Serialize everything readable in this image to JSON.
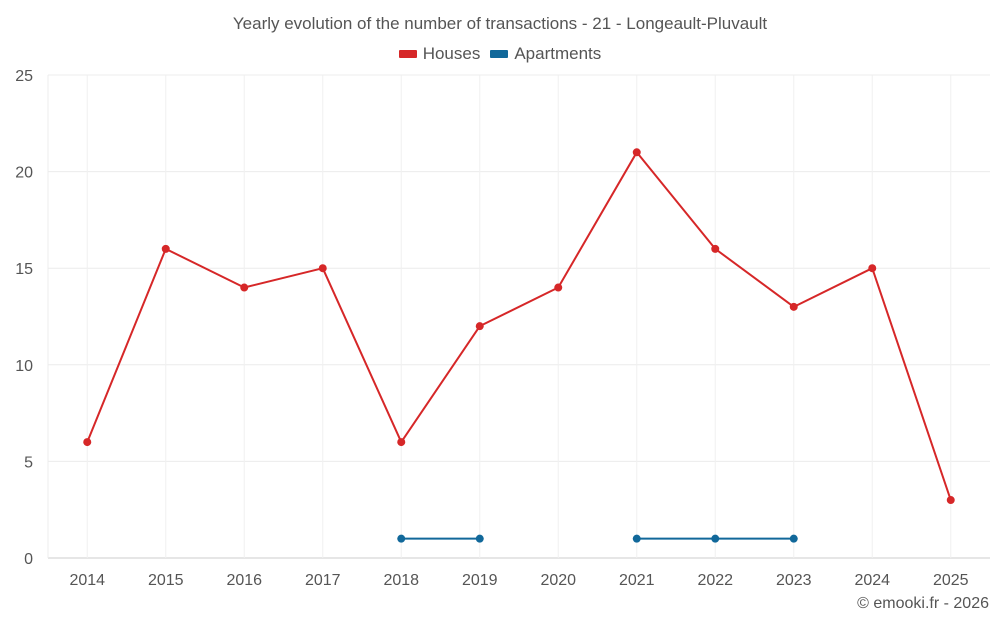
{
  "chart_data": {
    "type": "line",
    "title": "Yearly evolution of the number of transactions - 21 - Longeault-Pluvault",
    "xlabel": "",
    "ylabel": "",
    "ylim": [
      0,
      25
    ],
    "yticks": [
      0,
      5,
      10,
      15,
      20,
      25
    ],
    "grid": true,
    "legend_position": "top-center",
    "categories": [
      "2014",
      "2015",
      "2016",
      "2017",
      "2018",
      "2019",
      "2020",
      "2021",
      "2022",
      "2023",
      "2024",
      "2025"
    ],
    "series": [
      {
        "name": "Houses",
        "color": "#d62728",
        "values": [
          6,
          16,
          14,
          15,
          6,
          12,
          14,
          21,
          16,
          13,
          15,
          3
        ]
      },
      {
        "name": "Apartments",
        "color": "#11689a",
        "values": [
          null,
          null,
          null,
          null,
          1,
          1,
          null,
          1,
          1,
          1,
          null,
          null
        ]
      }
    ]
  },
  "credit": "© emooki.fr - 2026"
}
